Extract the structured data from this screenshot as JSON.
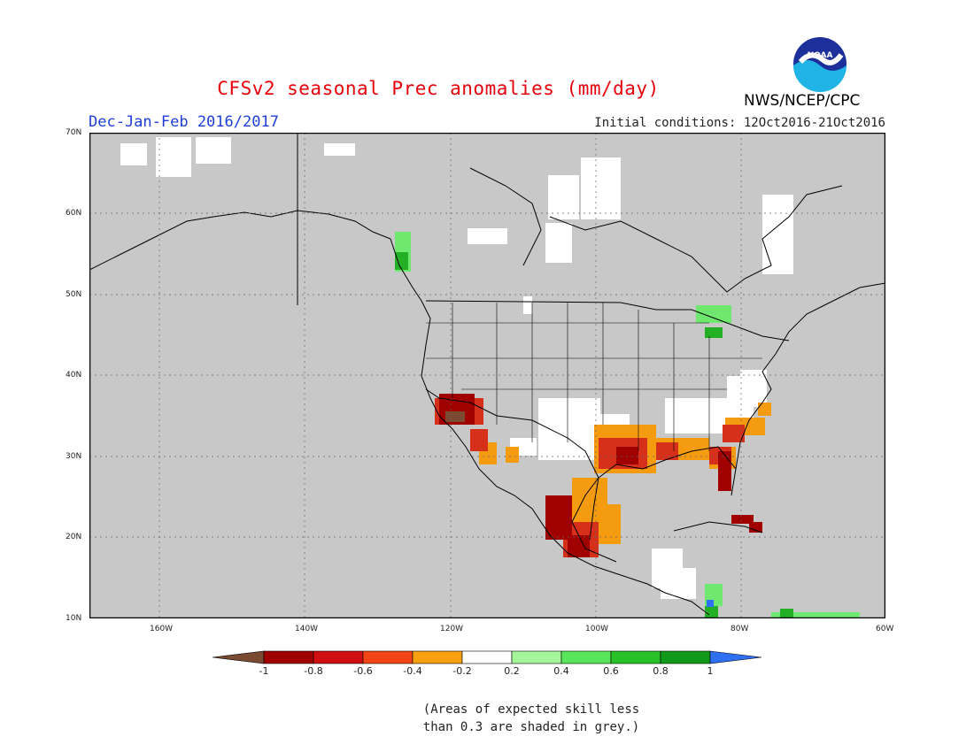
{
  "header": {
    "title": "CFSv2 seasonal Prec anomalies (mm/day)",
    "period": "Dec-Jan-Feb 2016/2017",
    "initial_conditions": "Initial conditions: 12Oct2016-21Oct2016",
    "agency": "NWS/NCEP/CPC",
    "logo_text": "NOAA"
  },
  "map": {
    "lat_labels": [
      "70N",
      "60N",
      "50N",
      "40N",
      "30N",
      "20N",
      "10N"
    ],
    "lon_labels": [
      "160W",
      "140W",
      "120W",
      "100W",
      "80W",
      "60W"
    ],
    "colors": {
      "ocean_grey": "#c8c8c8",
      "land_outline": "#000000",
      "neutral": "#ffffff",
      "dry_strong": "#a00000",
      "dry_mid": "#d6301a",
      "dry_light": "#f49b10",
      "wet_light": "#6ee86e",
      "wet_mid": "#24b024"
    }
  },
  "colorbar": {
    "labels": [
      "-1",
      "-0.8",
      "-0.6",
      "-0.4",
      "-0.2",
      "0.2",
      "0.4",
      "0.6",
      "0.8",
      "1"
    ],
    "colors": [
      "#7b4a33",
      "#a00000",
      "#d01010",
      "#f24414",
      "#f7a010",
      "#ffffff",
      "#a5f59a",
      "#5ae65a",
      "#28c128",
      "#119a19",
      "#2f6ff2"
    ]
  },
  "note": {
    "line1": "(Areas of expected skill less",
    "line2": "than 0.3 are shaded in grey.)"
  }
}
